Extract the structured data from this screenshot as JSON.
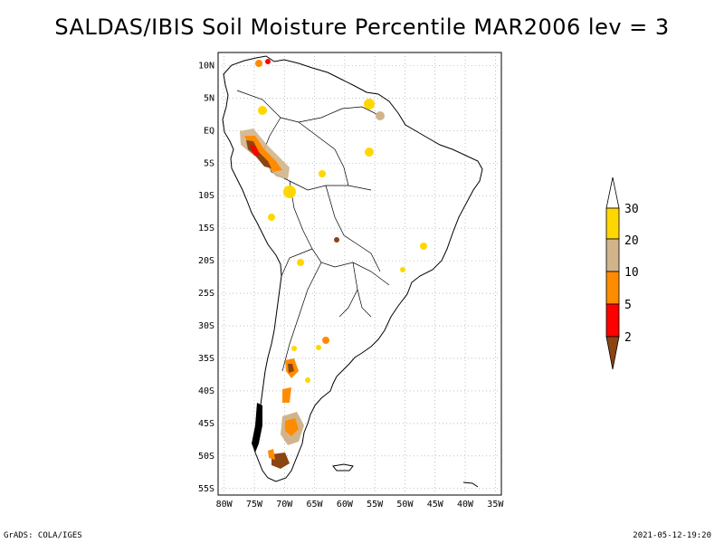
{
  "title": "SALDAS/IBIS Soil Moisture Percentile MAR2006 lev = 3",
  "footer": {
    "left": "GrADS: COLA/IGES",
    "right": "2021-05-12-19:20"
  },
  "map": {
    "lat_labels": [
      "10N",
      "5N",
      "EQ",
      "5S",
      "10S",
      "15S",
      "20S",
      "25S",
      "30S",
      "35S",
      "40S",
      "45S",
      "50S",
      "55S"
    ],
    "lat_values": [
      10,
      5,
      0,
      -5,
      -10,
      -15,
      -20,
      -25,
      -30,
      -35,
      -40,
      -45,
      -50,
      -55
    ],
    "lon_labels": [
      "80W",
      "75W",
      "70W",
      "65W",
      "60W",
      "55W",
      "50W",
      "45W",
      "40W",
      "35W"
    ],
    "lon_values": [
      -80,
      -75,
      -70,
      -65,
      -60,
      -55,
      -50,
      -45,
      -40,
      -35
    ],
    "extent": {
      "lon": [
        -81,
        -34
      ],
      "lat": [
        -56,
        12
      ]
    },
    "grid": true
  },
  "legend": {
    "labels": [
      "30",
      "20",
      "10",
      "5",
      "2"
    ],
    "bins": [
      {
        "range": ">30",
        "color": "#ffffff"
      },
      {
        "range": "20-30",
        "color": "#ffd700"
      },
      {
        "range": "10-20",
        "color": "#d2b48c"
      },
      {
        "range": "5-10",
        "color": "#ff8c00"
      },
      {
        "range": "2-5",
        "color": "#ff0000"
      },
      {
        "range": "<2",
        "color": "#8b4513"
      }
    ]
  }
}
